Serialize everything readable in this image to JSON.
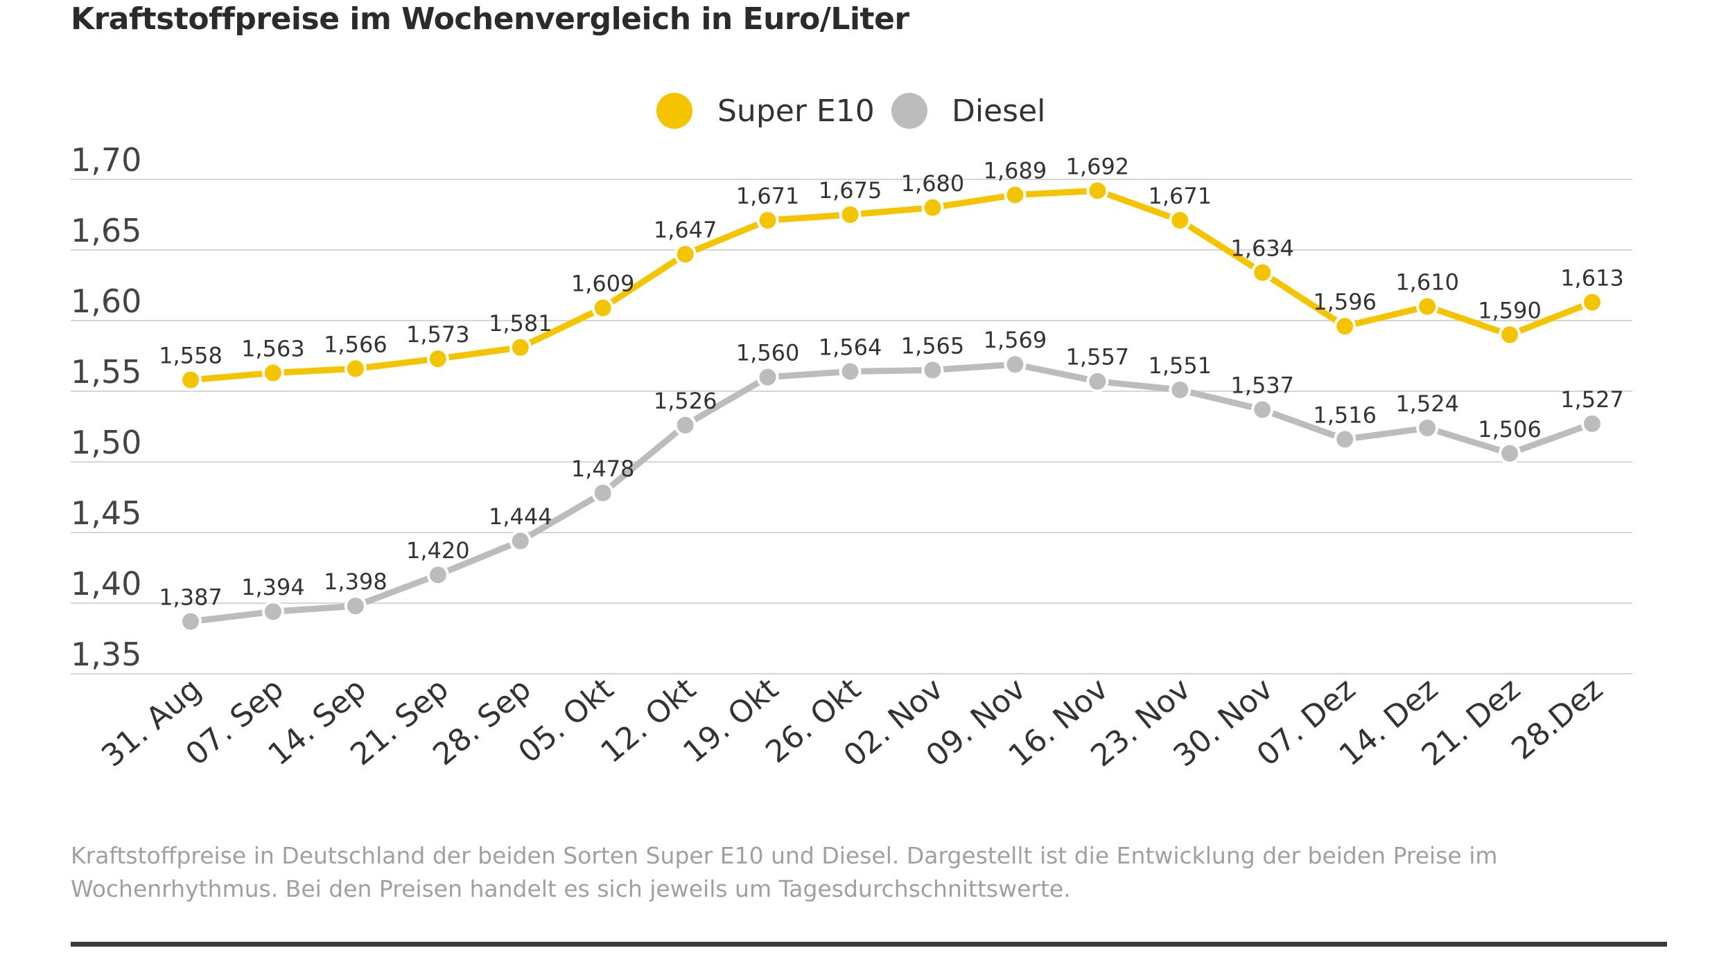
{
  "title": "Kraftstoffpreise im Wochenvergleich in Euro/Liter",
  "caption": "Kraftstoffpreise in Deutschland der beiden Sorten Super E10 und Diesel. Dargestellt ist die Entwicklung der beiden Preise im Wochenrhythmus. Bei den Preisen handelt es sich jeweils um Tagesdurchschnittswerte.",
  "chart_data": {
    "type": "line",
    "title": "Kraftstoffpreise im Wochenvergleich in Euro/Liter",
    "xlabel": "",
    "ylabel": "",
    "categories": [
      "31. Aug",
      "07. Sep",
      "14. Sep",
      "21. Sep",
      "28. Sep",
      "05. Okt",
      "12. Okt",
      "19. Okt",
      "26. Okt",
      "02. Nov",
      "09. Nov",
      "16. Nov",
      "23. Nov",
      "30. Nov",
      "07. Dez",
      "14. Dez",
      "21. Dez",
      "28.Dez"
    ],
    "ylim": [
      1.35,
      1.7
    ],
    "yticks": [
      "1,70",
      "1,65",
      "1,60",
      "1,55",
      "1,50",
      "1,45",
      "1,40",
      "1,35"
    ],
    "ytick_values": [
      1.7,
      1.65,
      1.6,
      1.55,
      1.5,
      1.45,
      1.4,
      1.35
    ],
    "grid": true,
    "legend_position": "top-center",
    "series": [
      {
        "name": "Super E10",
        "color": "#f5c400",
        "values": [
          1.558,
          1.563,
          1.566,
          1.573,
          1.581,
          1.609,
          1.647,
          1.671,
          1.675,
          1.68,
          1.689,
          1.692,
          1.671,
          1.634,
          1.596,
          1.61,
          1.59,
          1.613
        ],
        "labels": [
          "1,558",
          "1,563",
          "1,566",
          "1,573",
          "1,581",
          "1,609",
          "1,647",
          "1,671",
          "1,675",
          "1,680",
          "1,689",
          "1,692",
          "1,671",
          "1,634",
          "1,596",
          "1,610",
          "1,590",
          "1,613"
        ]
      },
      {
        "name": "Diesel",
        "color": "#bcbcbc",
        "values": [
          1.387,
          1.394,
          1.398,
          1.42,
          1.444,
          1.478,
          1.526,
          1.56,
          1.564,
          1.565,
          1.569,
          1.557,
          1.551,
          1.537,
          1.516,
          1.524,
          1.506,
          1.527
        ],
        "labels": [
          "1,387",
          "1,394",
          "1,398",
          "1,420",
          "1,444",
          "1,478",
          "1,526",
          "1,560",
          "1,564",
          "1,565",
          "1,569",
          "1,557",
          "1,551",
          "1,537",
          "1,516",
          "1,524",
          "1,506",
          "1,527"
        ]
      }
    ]
  }
}
